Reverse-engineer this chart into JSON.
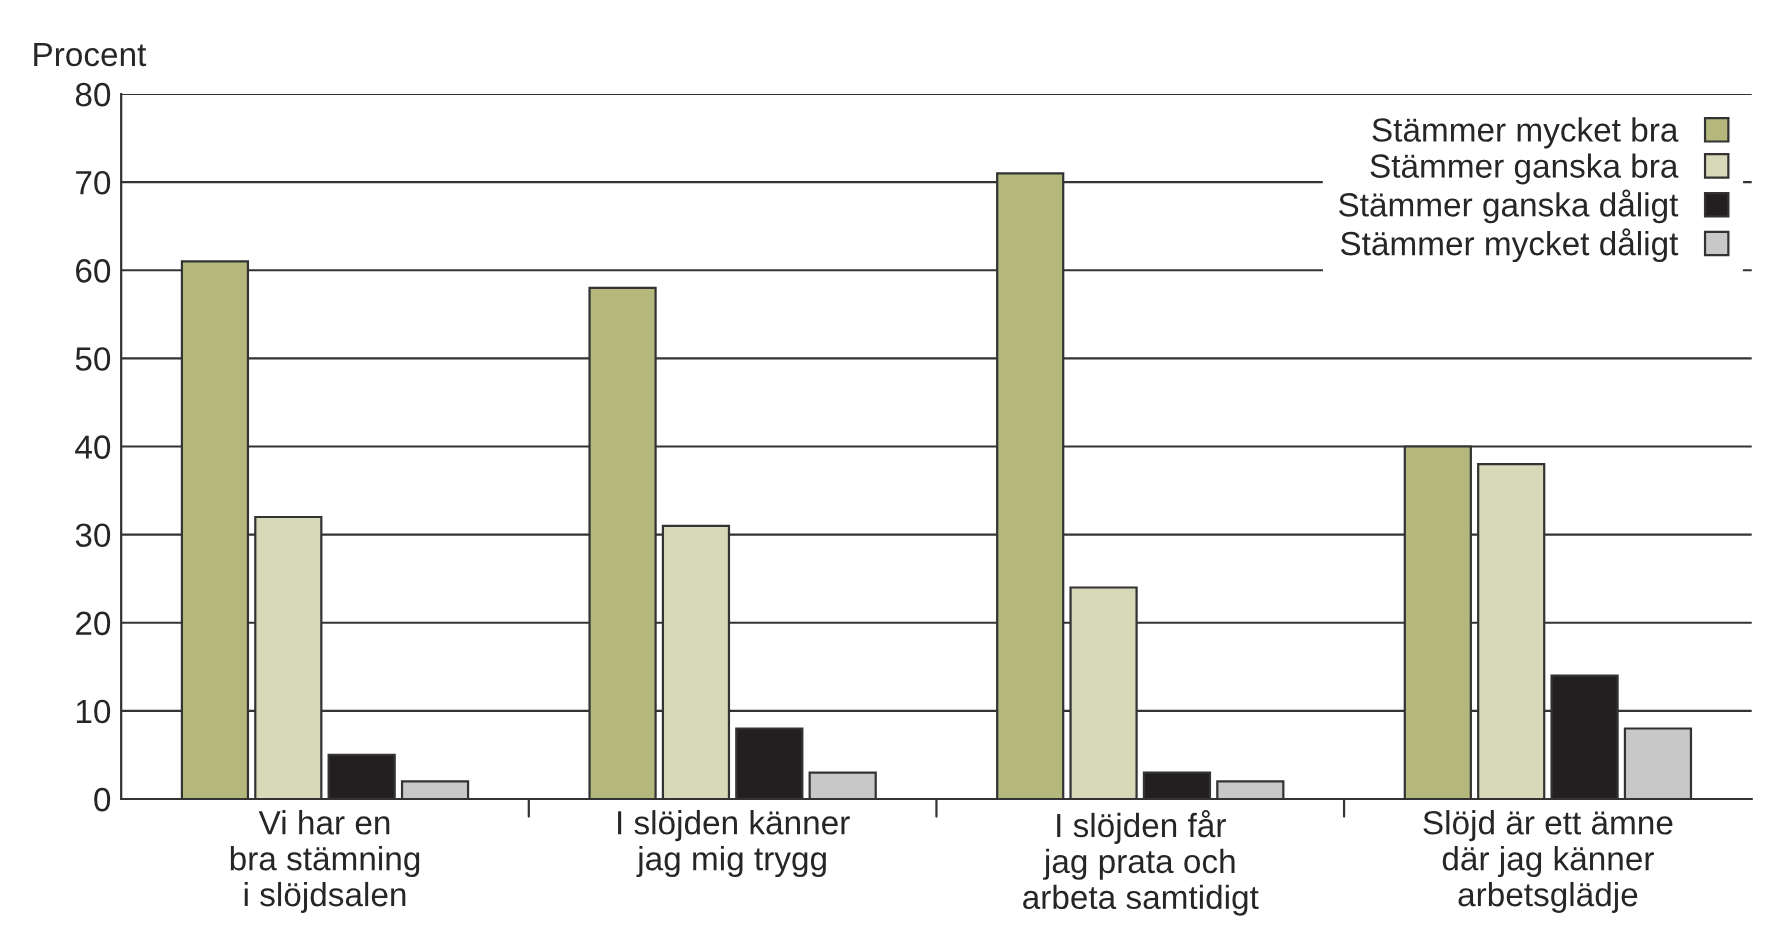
{
  "chart_data": {
    "type": "bar",
    "ylabel": "Procent",
    "categories": [
      "Vi har en\nbra stämning\ni slöjdsalen",
      "I slöjden känner\njag mig trygg",
      "I slöjden får\njag prata och\narbeta samtidigt",
      "Slöjd är ett ämne\ndär jag känner\narbetsglädje"
    ],
    "series": [
      {
        "name": "Stämmer mycket bra",
        "color": "#b4b87c",
        "values": [
          61,
          58,
          71,
          40
        ]
      },
      {
        "name": "Stämmer ganska bra",
        "color": "#d8d9b8",
        "values": [
          32,
          31,
          24,
          38
        ]
      },
      {
        "name": "Stämmer ganska dåligt",
        "color": "#231f20",
        "values": [
          5,
          8,
          3,
          14
        ]
      },
      {
        "name": "Stämmer mycket dåligt",
        "color": "#c8c8c8",
        "values": [
          2,
          3,
          2,
          8
        ]
      }
    ],
    "ylim": [
      0,
      80
    ],
    "yticks": [
      0,
      10,
      20,
      30,
      40,
      50,
      60,
      70,
      80
    ],
    "grid": "y",
    "legend": "top right"
  }
}
